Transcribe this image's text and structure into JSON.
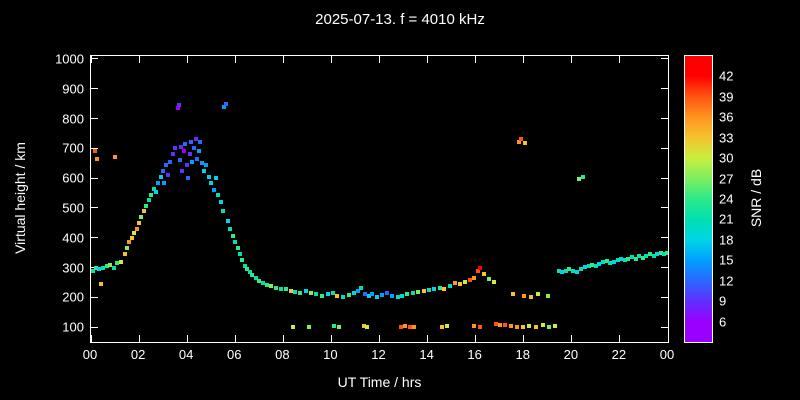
{
  "title": "2025-07-13. f = 4010 kHz",
  "axes": {
    "x_label": "UT Time / hrs",
    "y_label": "Virtual height / km",
    "x_ticks": [
      "00",
      "02",
      "04",
      "06",
      "08",
      "10",
      "12",
      "14",
      "16",
      "18",
      "20",
      "22",
      "00"
    ],
    "y_ticks": [
      "1000",
      "900",
      "800",
      "700",
      "600",
      "500",
      "400",
      "300",
      "200",
      "100"
    ],
    "x_range": [
      0,
      24
    ],
    "y_range": [
      50,
      1010
    ]
  },
  "colorbar": {
    "label": "SNR / dB",
    "ticks": [
      "6",
      "9",
      "12",
      "15",
      "18",
      "21",
      "24",
      "27",
      "30",
      "33",
      "36",
      "39",
      "42"
    ],
    "values": [
      6,
      9,
      12,
      15,
      18,
      21,
      24,
      27,
      30,
      33,
      36,
      39,
      42
    ],
    "colors": [
      "#9900ff",
      "#5f2fff",
      "#2b66ff",
      "#00a0ff",
      "#00d4e6",
      "#00e0b0",
      "#2ce98a",
      "#7fee5f",
      "#c8ee3e",
      "#f4c32e",
      "#ff941e",
      "#ff5510",
      "#ff0000"
    ]
  },
  "chart_data": {
    "type": "scatter",
    "title": "2025-07-13. f = 4010 kHz",
    "xlabel": "UT Time / hrs",
    "ylabel": "Virtual height / km",
    "color_label": "SNR / dB",
    "xlim": [
      0,
      24
    ],
    "ylim": [
      50,
      1010
    ],
    "grid": false,
    "point_format": "[ut_hours, virtual_height_km, snr_db]",
    "points": [
      [
        0.1,
        290,
        21
      ],
      [
        0.2,
        300,
        24
      ],
      [
        0.35,
        295,
        18
      ],
      [
        0.5,
        300,
        21
      ],
      [
        0.65,
        305,
        24
      ],
      [
        0.8,
        310,
        27
      ],
      [
        0.95,
        300,
        21
      ],
      [
        1.1,
        315,
        24
      ],
      [
        0.15,
        690,
        39
      ],
      [
        0.25,
        665,
        36
      ],
      [
        1.0,
        670,
        36
      ],
      [
        0.4,
        245,
        33
      ],
      [
        1.25,
        320,
        30
      ],
      [
        1.4,
        345,
        33
      ],
      [
        1.5,
        365,
        27
      ],
      [
        1.6,
        385,
        36
      ],
      [
        1.7,
        400,
        33
      ],
      [
        1.8,
        415,
        30
      ],
      [
        1.9,
        430,
        36
      ],
      [
        2.0,
        450,
        33
      ],
      [
        2.1,
        470,
        27
      ],
      [
        2.2,
        490,
        33
      ],
      [
        2.3,
        505,
        24
      ],
      [
        2.4,
        525,
        21
      ],
      [
        2.5,
        545,
        24
      ],
      [
        2.6,
        565,
        21
      ],
      [
        2.7,
        555,
        18
      ],
      [
        2.8,
        585,
        15
      ],
      [
        2.9,
        605,
        18
      ],
      [
        3.0,
        625,
        12
      ],
      [
        3.05,
        585,
        15
      ],
      [
        3.1,
        645,
        12
      ],
      [
        3.2,
        610,
        9
      ],
      [
        3.3,
        655,
        12
      ],
      [
        3.4,
        680,
        9
      ],
      [
        3.5,
        700,
        9
      ],
      [
        3.6,
        835,
        6
      ],
      [
        3.65,
        845,
        9
      ],
      [
        3.7,
        660,
        12
      ],
      [
        3.75,
        705,
        9
      ],
      [
        3.8,
        625,
        9
      ],
      [
        3.85,
        690,
        6
      ],
      [
        3.9,
        715,
        12
      ],
      [
        4.0,
        645,
        9
      ],
      [
        4.05,
        600,
        12
      ],
      [
        4.1,
        680,
        9
      ],
      [
        4.15,
        720,
        12
      ],
      [
        4.2,
        655,
        15
      ],
      [
        4.3,
        700,
        12
      ],
      [
        4.35,
        730,
        9
      ],
      [
        4.4,
        665,
        12
      ],
      [
        4.5,
        690,
        15
      ],
      [
        4.55,
        720,
        12
      ],
      [
        4.6,
        650,
        15
      ],
      [
        4.7,
        625,
        18
      ],
      [
        4.8,
        645,
        15
      ],
      [
        4.9,
        605,
        18
      ],
      [
        5.55,
        840,
        15
      ],
      [
        5.62,
        850,
        12
      ],
      [
        5.0,
        585,
        18
      ],
      [
        5.1,
        560,
        15
      ],
      [
        5.2,
        600,
        18
      ],
      [
        5.3,
        545,
        21
      ],
      [
        5.4,
        520,
        18
      ],
      [
        5.5,
        490,
        21
      ],
      [
        5.7,
        455,
        18
      ],
      [
        5.8,
        430,
        21
      ],
      [
        5.9,
        405,
        24
      ],
      [
        6.0,
        385,
        21
      ],
      [
        6.1,
        365,
        24
      ],
      [
        6.2,
        345,
        21
      ],
      [
        6.3,
        325,
        24
      ],
      [
        6.4,
        305,
        21
      ],
      [
        6.5,
        295,
        24
      ],
      [
        6.6,
        285,
        21
      ],
      [
        6.7,
        275,
        24
      ],
      [
        6.85,
        265,
        21
      ],
      [
        7.0,
        255,
        24
      ],
      [
        7.15,
        248,
        21
      ],
      [
        7.3,
        242,
        24
      ],
      [
        7.5,
        238,
        27
      ],
      [
        7.7,
        232,
        24
      ],
      [
        7.9,
        228,
        21
      ],
      [
        8.1,
        228,
        24
      ],
      [
        8.3,
        222,
        33
      ],
      [
        8.5,
        218,
        21
      ],
      [
        8.7,
        215,
        24
      ],
      [
        8.95,
        220,
        18
      ],
      [
        9.15,
        214,
        27
      ],
      [
        9.35,
        210,
        21
      ],
      [
        9.6,
        206,
        24
      ],
      [
        9.85,
        210,
        18
      ],
      [
        10.05,
        214,
        21
      ],
      [
        10.25,
        206,
        33
      ],
      [
        10.5,
        202,
        21
      ],
      [
        10.75,
        208,
        24
      ],
      [
        10.95,
        214,
        18
      ],
      [
        11.1,
        220,
        15
      ],
      [
        11.25,
        230,
        21
      ],
      [
        11.4,
        212,
        12
      ],
      [
        11.55,
        206,
        18
      ],
      [
        11.7,
        210,
        15
      ],
      [
        11.9,
        202,
        18
      ],
      [
        12.1,
        208,
        15
      ],
      [
        12.3,
        214,
        12
      ],
      [
        12.5,
        206,
        15
      ],
      [
        12.75,
        202,
        21
      ],
      [
        12.95,
        206,
        18
      ],
      [
        13.15,
        210,
        24
      ],
      [
        13.4,
        214,
        21
      ],
      [
        13.6,
        218,
        27
      ],
      [
        13.85,
        222,
        33
      ],
      [
        8.4,
        102,
        30
      ],
      [
        9.05,
        100,
        27
      ],
      [
        10.1,
        104,
        24
      ],
      [
        10.3,
        100,
        27
      ],
      [
        11.35,
        104,
        33
      ],
      [
        11.5,
        100,
        30
      ],
      [
        12.9,
        100,
        39
      ],
      [
        13.05,
        104,
        36
      ],
      [
        13.25,
        100,
        39
      ],
      [
        13.45,
        102,
        36
      ],
      [
        14.6,
        100,
        33
      ],
      [
        14.8,
        104,
        30
      ],
      [
        15.95,
        104,
        36
      ],
      [
        16.2,
        100,
        39
      ],
      [
        16.85,
        110,
        39
      ],
      [
        17.0,
        108,
        36
      ],
      [
        17.2,
        106,
        39
      ],
      [
        17.45,
        104,
        36
      ],
      [
        17.7,
        102,
        36
      ],
      [
        17.95,
        100,
        33
      ],
      [
        18.2,
        104,
        30
      ],
      [
        18.5,
        102,
        33
      ],
      [
        18.8,
        106,
        30
      ],
      [
        19.05,
        100,
        27
      ],
      [
        19.3,
        104,
        30
      ],
      [
        14.05,
        224,
        21
      ],
      [
        14.25,
        228,
        18
      ],
      [
        14.5,
        232,
        24
      ],
      [
        14.7,
        228,
        33
      ],
      [
        14.95,
        238,
        21
      ],
      [
        15.15,
        248,
        36
      ],
      [
        15.35,
        244,
        33
      ],
      [
        15.55,
        252,
        30
      ],
      [
        15.75,
        258,
        39
      ],
      [
        15.95,
        266,
        36
      ],
      [
        16.1,
        288,
        39
      ],
      [
        16.2,
        298,
        42
      ],
      [
        16.35,
        278,
        33
      ],
      [
        16.55,
        262,
        27
      ],
      [
        16.75,
        252,
        30
      ],
      [
        17.55,
        210,
        33
      ],
      [
        18.0,
        206,
        36
      ],
      [
        18.3,
        202,
        33
      ],
      [
        18.6,
        210,
        30
      ],
      [
        19.0,
        206,
        27
      ],
      [
        17.8,
        722,
        36
      ],
      [
        17.9,
        732,
        39
      ],
      [
        18.05,
        718,
        33
      ],
      [
        20.3,
        598,
        27
      ],
      [
        20.45,
        605,
        24
      ],
      [
        19.45,
        288,
        21
      ],
      [
        19.6,
        284,
        18
      ],
      [
        19.75,
        290,
        21
      ],
      [
        19.9,
        294,
        24
      ],
      [
        20.05,
        290,
        21
      ],
      [
        20.2,
        286,
        18
      ],
      [
        20.4,
        296,
        21
      ],
      [
        20.55,
        302,
        18
      ],
      [
        20.7,
        306,
        21
      ],
      [
        20.85,
        310,
        24
      ],
      [
        21.0,
        304,
        21
      ],
      [
        21.15,
        312,
        18
      ],
      [
        21.3,
        318,
        21
      ],
      [
        21.45,
        322,
        24
      ],
      [
        21.6,
        316,
        21
      ],
      [
        21.75,
        320,
        18
      ],
      [
        21.9,
        326,
        21
      ],
      [
        22.05,
        330,
        18
      ],
      [
        22.2,
        324,
        21
      ],
      [
        22.35,
        330,
        24
      ],
      [
        22.5,
        336,
        21
      ],
      [
        22.65,
        330,
        24
      ],
      [
        22.8,
        338,
        21
      ],
      [
        22.95,
        332,
        24
      ],
      [
        23.1,
        340,
        21
      ],
      [
        23.25,
        346,
        24
      ],
      [
        23.4,
        340,
        21
      ],
      [
        23.55,
        344,
        18
      ],
      [
        23.7,
        348,
        24
      ],
      [
        23.85,
        344,
        21
      ],
      [
        23.95,
        350,
        24
      ]
    ]
  }
}
